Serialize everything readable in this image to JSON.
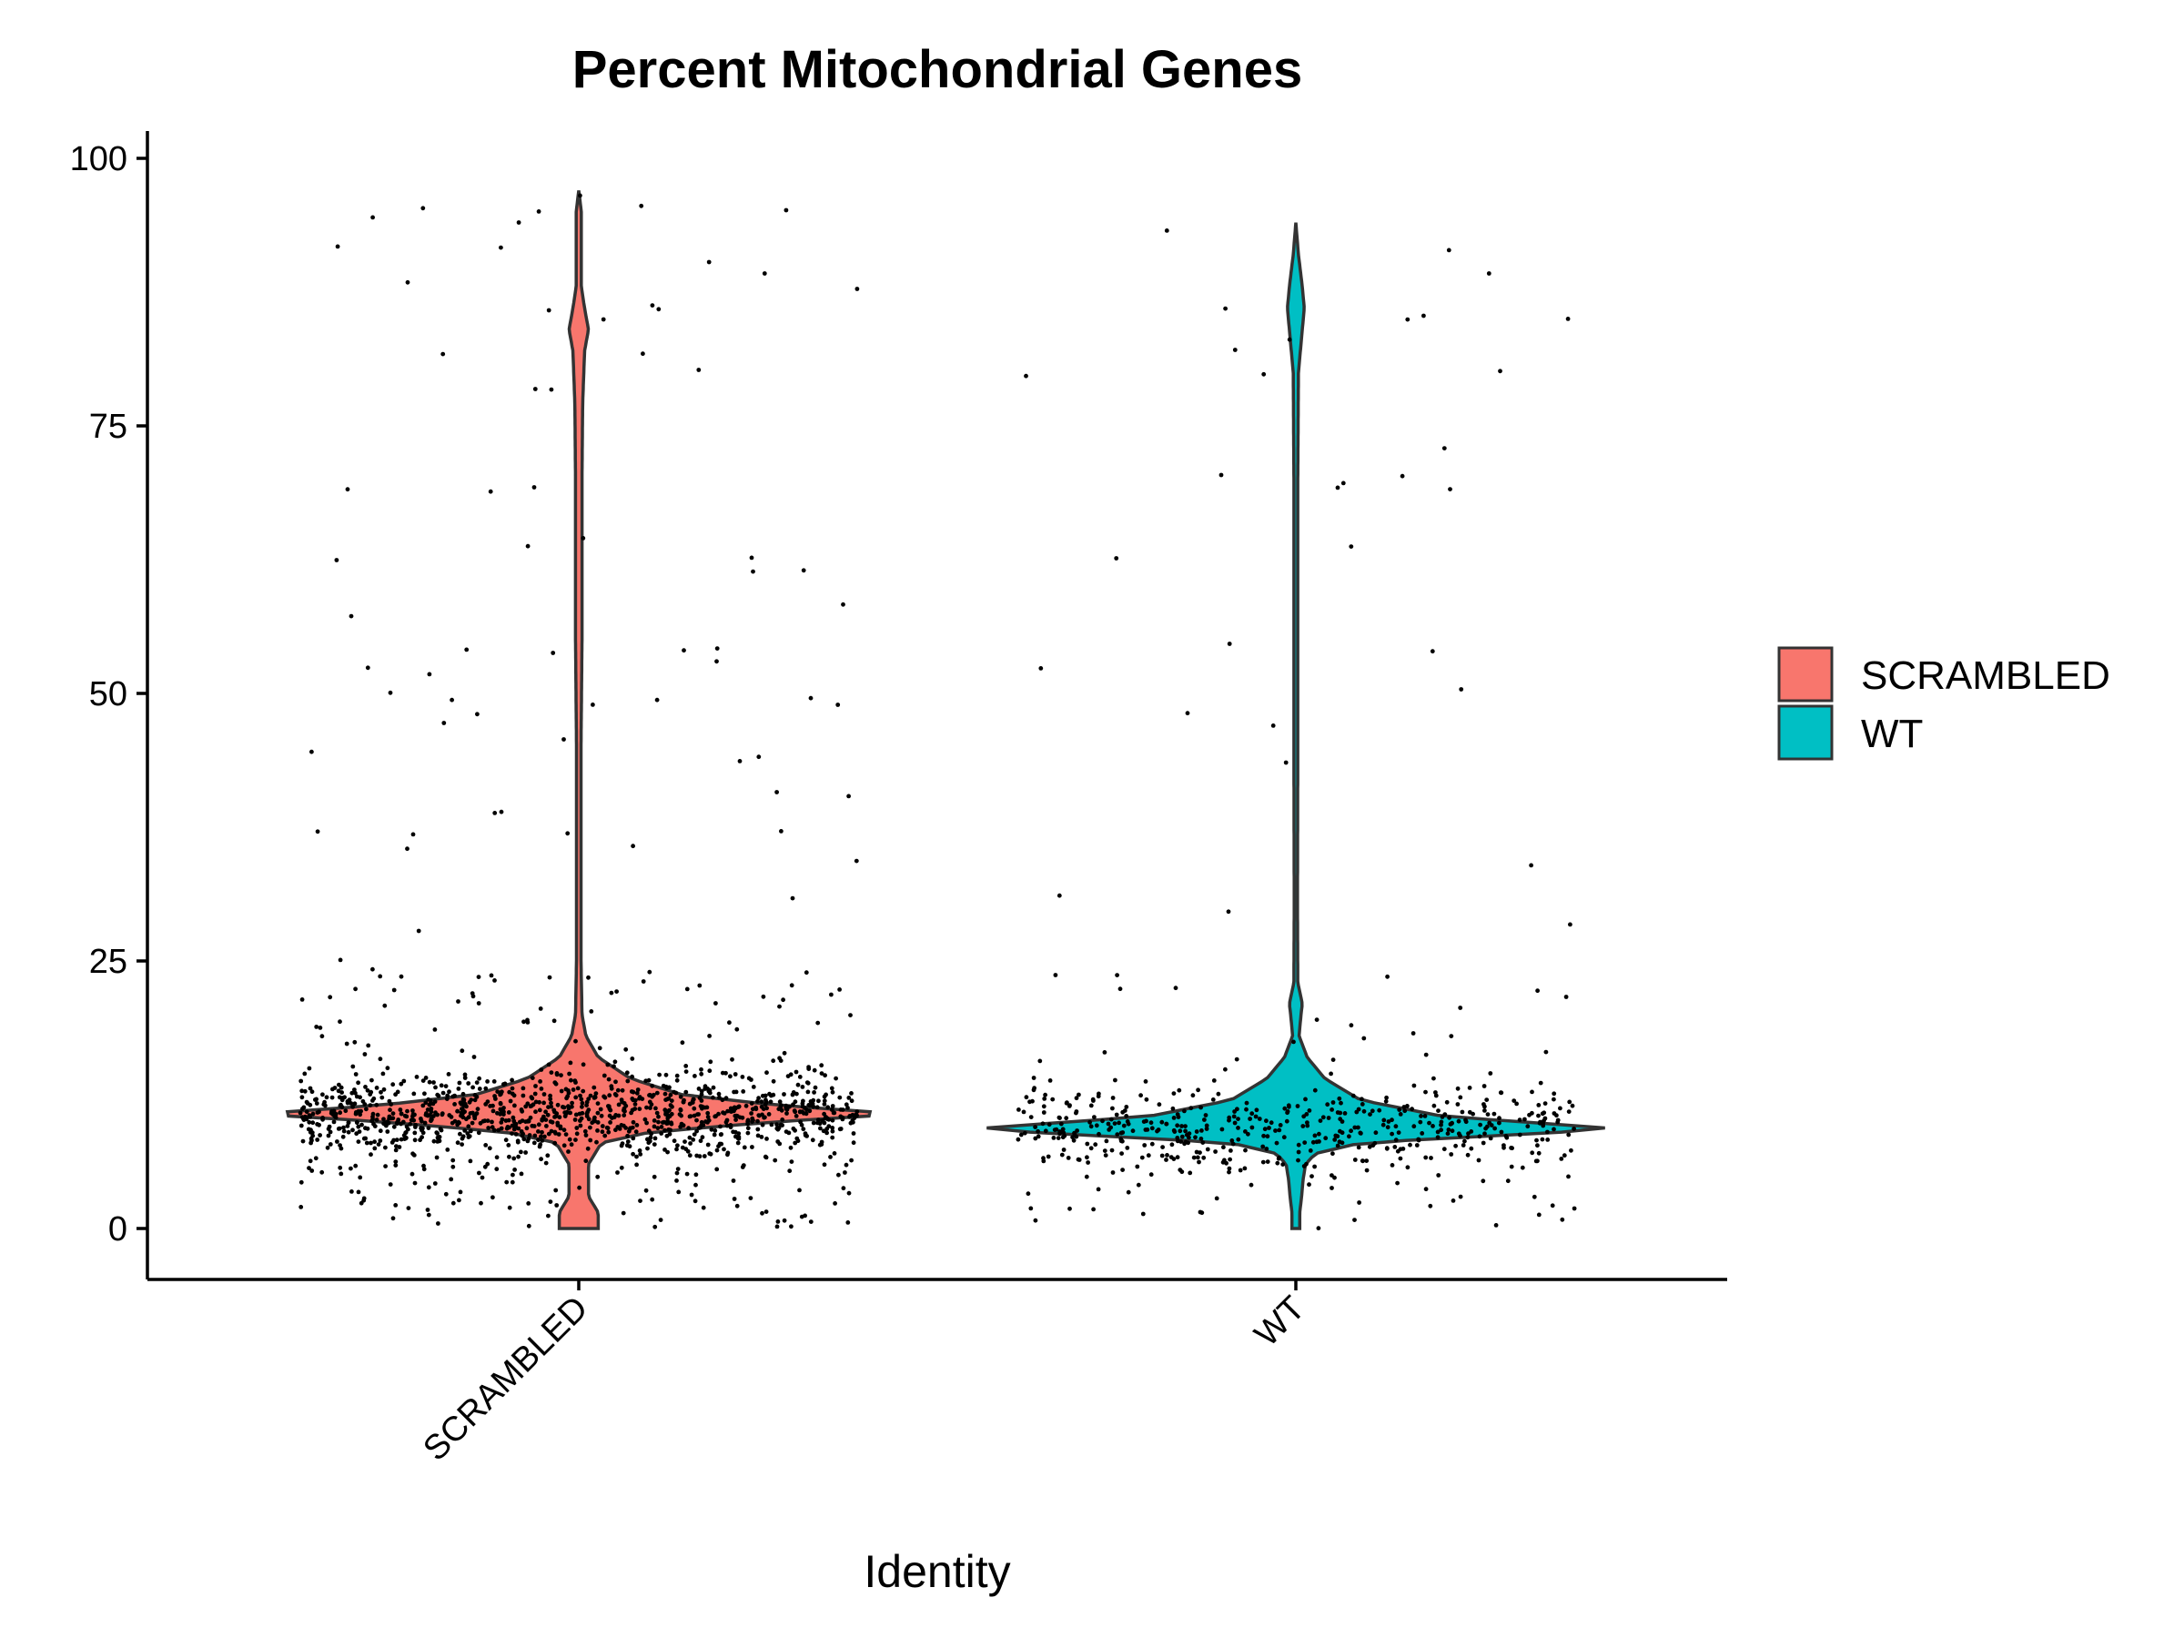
{
  "chart_data": {
    "type": "violin",
    "title": "Percent Mitochondrial Genes",
    "xlabel": "Identity",
    "ylabel": "",
    "categories": [
      "SCRAMBLED",
      "WT"
    ],
    "ylim": [
      -5,
      102
    ],
    "yticks": [
      0,
      25,
      50,
      75,
      100
    ],
    "grid": false,
    "legend": {
      "position": "right",
      "entries": [
        {
          "name": "SCRAMBLED",
          "color": "#F8766D"
        },
        {
          "name": "WT",
          "color": "#00BFC4"
        }
      ]
    },
    "series": [
      {
        "name": "SCRAMBLED",
        "color": "#F8766D",
        "range": [
          0,
          97
        ],
        "mode": 10.7,
        "density_profile": [
          [
            0,
            0.06
          ],
          [
            1.5,
            0.06
          ],
          [
            3,
            0.03
          ],
          [
            4.5,
            0.03
          ],
          [
            6,
            0.03
          ],
          [
            7,
            0.05
          ],
          [
            8,
            0.07
          ],
          [
            9,
            0.22
          ],
          [
            10,
            0.62
          ],
          [
            10.7,
            1.0
          ],
          [
            11.5,
            0.62
          ],
          [
            12.5,
            0.32
          ],
          [
            14,
            0.16
          ],
          [
            16,
            0.06
          ],
          [
            18,
            0.022
          ],
          [
            20,
            0.01
          ],
          [
            25,
            0.007
          ],
          [
            30,
            0.007
          ],
          [
            45,
            0.007
          ],
          [
            55,
            0.01
          ],
          [
            70,
            0.01
          ],
          [
            77,
            0.012
          ],
          [
            82,
            0.018
          ],
          [
            84,
            0.03
          ],
          [
            86,
            0.018
          ],
          [
            88,
            0.008
          ],
          [
            95,
            0.008
          ],
          [
            97,
            0
          ]
        ],
        "jitter_points": 1100,
        "jitter_outliers": 230
      },
      {
        "name": "WT",
        "color": "#00BFC4",
        "range": [
          0,
          94
        ],
        "mode": 9.3,
        "density_profile": [
          [
            0,
            0.012
          ],
          [
            1.5,
            0.012
          ],
          [
            3,
            0.018
          ],
          [
            4.5,
            0.022
          ],
          [
            6,
            0.03
          ],
          [
            7,
            0.06
          ],
          [
            8,
            0.2
          ],
          [
            9.3,
            1.0
          ],
          [
            10.5,
            0.45
          ],
          [
            12,
            0.2
          ],
          [
            14,
            0.09
          ],
          [
            16,
            0.035
          ],
          [
            18,
            0.01
          ],
          [
            20,
            0.016
          ],
          [
            21,
            0.02
          ],
          [
            23,
            0.006
          ],
          [
            30,
            0.005
          ],
          [
            45,
            0.006
          ],
          [
            55,
            0.006
          ],
          [
            70,
            0.006
          ],
          [
            80,
            0.008
          ],
          [
            84,
            0.02
          ],
          [
            86,
            0.026
          ],
          [
            88,
            0.02
          ],
          [
            91,
            0.008
          ],
          [
            94,
            0
          ]
        ],
        "jitter_points": 480,
        "jitter_outliers": 90
      }
    ]
  }
}
